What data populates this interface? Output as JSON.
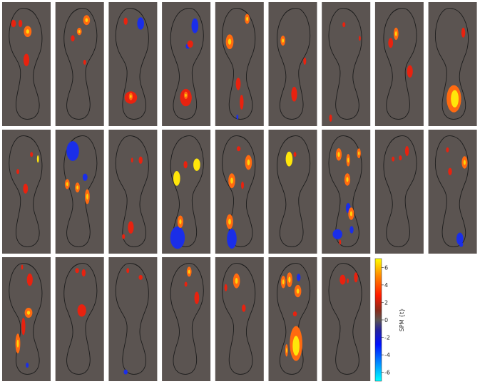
{
  "colorbar": {
    "label": "SPM {t}",
    "ticks": [
      "6",
      "4",
      "2",
      "0",
      "-2",
      "-4",
      "-6"
    ],
    "tick_values": [
      6,
      4,
      2,
      0,
      -2,
      -4,
      -6
    ],
    "range": [
      -7,
      7
    ],
    "colors": {
      "max": "#ffff00",
      "high": "#ff3300",
      "mid_pos": "#e00000",
      "zero": "#5b5451",
      "mid_neg": "#0000e0",
      "min": "#00ffff"
    }
  },
  "panels": [
    {
      "foot": "left",
      "blobs": [
        [
          0.2,
          0.15,
          0.05,
          0.03,
          "red"
        ],
        [
          0.53,
          0.22,
          0.08,
          0.045,
          "orange"
        ],
        [
          0.36,
          0.15,
          0.04,
          0.03,
          "red"
        ],
        [
          0.5,
          0.47,
          0.06,
          0.05,
          "red"
        ]
      ]
    },
    {
      "foot": "right",
      "blobs": [
        [
          0.32,
          0.12,
          0.07,
          0.04,
          "orange"
        ],
        [
          0.52,
          0.22,
          0.05,
          0.03,
          "orange"
        ],
        [
          0.7,
          0.28,
          0.04,
          0.025,
          "red"
        ],
        [
          0.37,
          0.49,
          0.03,
          0.02,
          "red"
        ]
      ]
    },
    {
      "foot": "left",
      "blobs": [
        [
          0.68,
          0.15,
          0.07,
          0.05,
          "blue"
        ],
        [
          0.33,
          0.13,
          0.04,
          0.03,
          "red"
        ],
        [
          0.45,
          0.8,
          0.13,
          0.05,
          "red"
        ],
        [
          0.45,
          0.79,
          0.04,
          0.03,
          "orange"
        ]
      ]
    },
    {
      "foot": "right",
      "blobs": [
        [
          0.27,
          0.17,
          0.07,
          0.06,
          "blue"
        ],
        [
          0.47,
          0.35,
          0.04,
          0.02,
          "blue"
        ],
        [
          0.4,
          0.33,
          0.06,
          0.03,
          "red"
        ],
        [
          0.52,
          0.8,
          0.12,
          0.07,
          "red"
        ],
        [
          0.52,
          0.78,
          0.04,
          0.03,
          "orange"
        ]
      ]
    },
    {
      "foot": "left",
      "blobs": [
        [
          0.27,
          0.31,
          0.08,
          0.06,
          "orange"
        ],
        [
          0.68,
          0.11,
          0.05,
          0.04,
          "orange"
        ],
        [
          0.55,
          0.84,
          0.04,
          0.06,
          "red"
        ],
        [
          0.47,
          0.68,
          0.05,
          0.05,
          "red"
        ],
        [
          0.45,
          0.97,
          0.02,
          0.02,
          "blue"
        ]
      ]
    },
    {
      "foot": "right",
      "blobs": [
        [
          0.78,
          0.3,
          0.05,
          0.04,
          "orange"
        ],
        [
          0.18,
          0.48,
          0.03,
          0.03,
          "red"
        ],
        [
          0.47,
          0.77,
          0.06,
          0.06,
          "red"
        ]
      ]
    },
    {
      "foot": "left",
      "blobs": [
        [
          0.45,
          0.16,
          0.03,
          0.02,
          "red"
        ],
        [
          0.82,
          0.28,
          0.02,
          0.02,
          "red"
        ],
        [
          0.14,
          1.12,
          0.03,
          0.03,
          "red"
        ]
      ]
    },
    {
      "foot": "right",
      "blobs": [
        [
          0.6,
          0.24,
          0.05,
          0.05,
          "orange"
        ],
        [
          0.75,
          0.32,
          0.05,
          0.04,
          "red"
        ],
        [
          0.22,
          0.57,
          0.06,
          0.05,
          "red"
        ]
      ]
    },
    {
      "foot": "left",
      "blobs": [
        [
          0.75,
          0.23,
          0.04,
          0.04,
          "red"
        ],
        [
          0.53,
          0.81,
          0.15,
          0.11,
          "orange"
        ],
        [
          0.55,
          0.81,
          0.08,
          0.07,
          "yellow"
        ]
      ]
    },
    {
      "foot": "left",
      "blobs": [
        [
          0.62,
          0.18,
          0.03,
          0.02,
          "red"
        ],
        [
          0.77,
          0.22,
          0.02,
          0.03,
          "yellow"
        ],
        [
          0.3,
          0.33,
          0.03,
          0.02,
          "red"
        ],
        [
          0.48,
          0.48,
          0.05,
          0.04,
          "red"
        ]
      ]
    },
    {
      "foot": "right",
      "blobs": [
        [
          0.7,
          0.15,
          0.13,
          0.08,
          "blue"
        ],
        [
          0.36,
          0.38,
          0.05,
          0.03,
          "blue"
        ],
        [
          0.3,
          0.55,
          0.05,
          0.06,
          "orange"
        ],
        [
          0.57,
          0.47,
          0.05,
          0.04,
          "orange"
        ],
        [
          0.85,
          0.44,
          0.05,
          0.04,
          "orange"
        ]
      ]
    },
    {
      "foot": "left",
      "blobs": [
        [
          0.68,
          0.23,
          0.04,
          0.03,
          "red"
        ],
        [
          0.48,
          0.23,
          0.02,
          0.02,
          "red"
        ],
        [
          0.45,
          0.82,
          0.06,
          0.05,
          "red"
        ],
        [
          0.28,
          0.9,
          0.03,
          0.02,
          "red"
        ]
      ]
    },
    {
      "foot": "right",
      "blobs": [
        [
          0.22,
          0.27,
          0.07,
          0.05,
          "yellow"
        ],
        [
          0.53,
          0.27,
          0.04,
          0.03,
          "red"
        ],
        [
          0.77,
          0.39,
          0.07,
          0.06,
          "yellow"
        ],
        [
          0.75,
          0.91,
          0.15,
          0.09,
          "blue"
        ],
        [
          0.67,
          0.77,
          0.06,
          0.05,
          "orange"
        ]
      ]
    },
    {
      "foot": "left",
      "blobs": [
        [
          0.71,
          0.25,
          0.07,
          0.06,
          "orange"
        ],
        [
          0.32,
          0.41,
          0.07,
          0.06,
          "orange"
        ],
        [
          0.57,
          0.45,
          0.03,
          0.03,
          "red"
        ],
        [
          0.48,
          0.13,
          0.04,
          0.02,
          "red"
        ],
        [
          0.32,
          0.92,
          0.1,
          0.08,
          "blue"
        ],
        [
          0.27,
          0.77,
          0.07,
          0.06,
          "orange"
        ]
      ]
    },
    {
      "foot": "right",
      "blobs": [
        [
          0.61,
          0.22,
          0.07,
          0.06,
          "yellow"
        ],
        [
          0.45,
          0.18,
          0.03,
          0.02,
          "red"
        ]
      ]
    },
    {
      "foot": "left",
      "blobs": [
        [
          0.33,
          0.18,
          0.06,
          0.05,
          "orange"
        ],
        [
          0.55,
          0.23,
          0.04,
          0.05,
          "orange"
        ],
        [
          0.8,
          0.17,
          0.04,
          0.04,
          "orange"
        ],
        [
          0.53,
          0.4,
          0.06,
          0.05,
          "orange"
        ],
        [
          0.55,
          0.65,
          0.05,
          0.04,
          "blue"
        ],
        [
          0.62,
          0.7,
          0.06,
          0.05,
          "orange"
        ],
        [
          0.3,
          0.88,
          0.1,
          0.04,
          "blue"
        ],
        [
          0.63,
          0.84,
          0.04,
          0.03,
          "blue"
        ],
        [
          0.36,
          0.95,
          0.02,
          0.02,
          "red"
        ]
      ]
    },
    {
      "foot": "right",
      "blobs": [
        [
          0.3,
          0.15,
          0.04,
          0.04,
          "red"
        ],
        [
          0.48,
          0.21,
          0.03,
          0.02,
          "red"
        ],
        [
          0.68,
          0.22,
          0.03,
          0.02,
          "red"
        ]
      ]
    },
    {
      "foot": "left",
      "blobs": [
        [
          0.78,
          0.25,
          0.06,
          0.05,
          "orange"
        ],
        [
          0.44,
          0.33,
          0.04,
          0.03,
          "red"
        ],
        [
          0.38,
          0.14,
          0.03,
          0.02,
          "red"
        ],
        [
          0.67,
          0.92,
          0.07,
          0.05,
          "blue"
        ],
        [
          0.7,
          0.97,
          0.04,
          0.02,
          "blue"
        ]
      ]
    },
    {
      "foot": "left",
      "blobs": [
        [
          0.58,
          0.16,
          0.06,
          0.05,
          "red"
        ],
        [
          0.4,
          0.05,
          0.02,
          0.02,
          "red"
        ],
        [
          0.55,
          0.45,
          0.08,
          0.04,
          "orange"
        ],
        [
          0.43,
          0.57,
          0.04,
          0.07,
          "red"
        ],
        [
          0.3,
          0.72,
          0.05,
          0.08,
          "orange"
        ],
        [
          0.52,
          0.91,
          0.03,
          0.02,
          "blue"
        ]
      ]
    },
    {
      "foot": "right",
      "blobs": [
        [
          0.45,
          0.43,
          0.09,
          0.05,
          "red"
        ],
        [
          0.4,
          0.1,
          0.04,
          0.03,
          "red"
        ],
        [
          0.58,
          0.08,
          0.04,
          0.02,
          "red"
        ]
      ]
    },
    {
      "foot": "left",
      "blobs": [
        [
          0.68,
          0.14,
          0.04,
          0.02,
          "red"
        ],
        [
          0.38,
          0.08,
          0.03,
          0.02,
          "red"
        ],
        [
          0.33,
          0.97,
          0.04,
          0.02,
          "blue"
        ]
      ]
    },
    {
      "foot": "right",
      "blobs": [
        [
          0.43,
          0.09,
          0.05,
          0.04,
          "orange"
        ],
        [
          0.22,
          0.32,
          0.05,
          0.05,
          "red"
        ],
        [
          0.52,
          0.2,
          0.03,
          0.02,
          "red"
        ]
      ]
    },
    {
      "foot": "left",
      "blobs": [
        [
          0.43,
          0.17,
          0.07,
          0.06,
          "orange"
        ],
        [
          0.18,
          0.23,
          0.03,
          0.03,
          "red"
        ],
        [
          0.6,
          0.41,
          0.04,
          0.03,
          "red"
        ]
      ]
    },
    {
      "foot": "right",
      "blobs": [
        [
          0.35,
          0.14,
          0.04,
          0.03,
          "blue"
        ],
        [
          0.6,
          0.16,
          0.06,
          0.06,
          "orange"
        ],
        [
          0.37,
          0.26,
          0.07,
          0.05,
          "orange"
        ],
        [
          0.77,
          0.18,
          0.05,
          0.05,
          "orange"
        ],
        [
          0.45,
          0.46,
          0.04,
          0.02,
          "red"
        ],
        [
          0.42,
          0.72,
          0.13,
          0.14,
          "orange"
        ],
        [
          0.42,
          0.74,
          0.07,
          0.08,
          "yellow"
        ],
        [
          0.68,
          0.78,
          0.03,
          0.05,
          "orange"
        ]
      ]
    },
    {
      "foot": "left",
      "blobs": [
        [
          0.42,
          0.16,
          0.06,
          0.04,
          "red"
        ],
        [
          0.73,
          0.14,
          0.04,
          0.04,
          "red"
        ],
        [
          0.54,
          0.17,
          0.02,
          0.02,
          "red"
        ]
      ]
    }
  ]
}
